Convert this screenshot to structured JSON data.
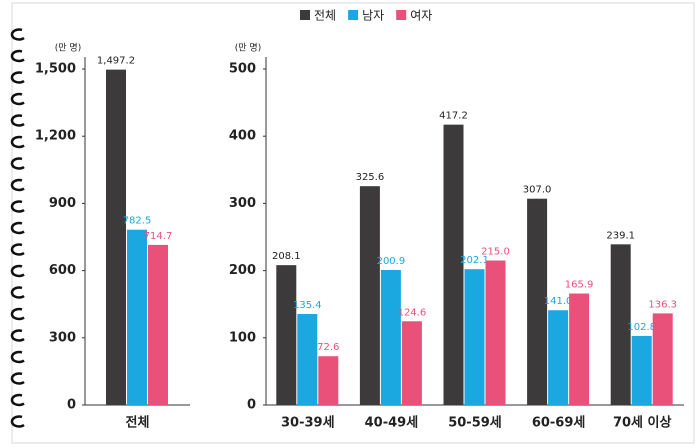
{
  "chart_data": [
    {
      "type": "bar",
      "y_label": "(만 명)",
      "categories": [
        "전체"
      ],
      "series": [
        {
          "name": "전체",
          "color": "#3d3a3b",
          "values": [
            1497.2
          ],
          "value_labels": [
            "1,497.2"
          ]
        },
        {
          "name": "남자",
          "color": "#1ba7e0",
          "values": [
            782.5
          ]
        },
        {
          "name": "여자",
          "color": "#e9507a",
          "values": [
            714.7
          ]
        }
      ],
      "ylim": [
        0,
        1500
      ],
      "yticks": [
        0,
        300,
        600,
        900,
        {
          "value": 1200,
          "label": "1,200"
        },
        {
          "value": 1500,
          "label": "1,500"
        }
      ]
    },
    {
      "type": "bar",
      "y_label": "(만 명)",
      "categories": [
        "30-39세",
        "40-49세",
        "50-59세",
        "60-69세",
        "70세 이상"
      ],
      "series": [
        {
          "name": "전체",
          "color": "#3d3a3b",
          "values": [
            208.1,
            325.6,
            417.2,
            307.0,
            239.1
          ],
          "value_labels": [
            "208.1",
            "325.6",
            "417.2",
            "307.0",
            "239.1"
          ]
        },
        {
          "name": "남자",
          "color": "#1ba7e0",
          "values": [
            135.4,
            200.9,
            202.1,
            141.0,
            102.8
          ],
          "value_labels": [
            "135.4",
            "200.9",
            "202.1",
            "141.0",
            "102.8"
          ]
        },
        {
          "name": "여자",
          "color": "#e9507a",
          "values": [
            72.6,
            124.6,
            215.0,
            165.9,
            136.3
          ],
          "value_labels": [
            "72.6",
            "124.6",
            "215.0",
            "165.9",
            "136.3"
          ]
        }
      ],
      "ylim": [
        0,
        500
      ],
      "yticks": [
        0,
        100,
        200,
        300,
        400,
        500
      ]
    }
  ]
}
